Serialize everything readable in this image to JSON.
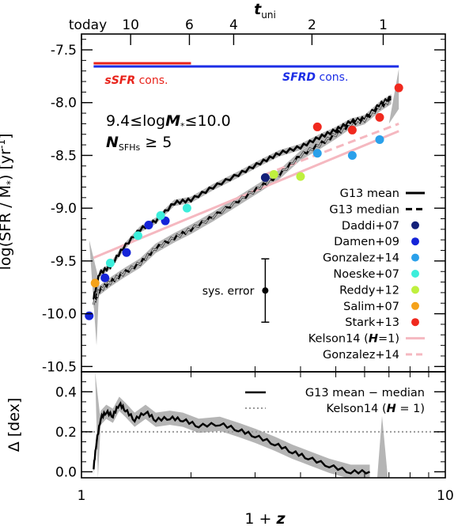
{
  "chart_data": [
    {
      "panel": "top",
      "type": "line",
      "top_axis": {
        "label": "t",
        "label_sub": "uni",
        "ticks": [
          {
            "label": "today",
            "z1": 1.0
          },
          {
            "label": "10",
            "z1": 1.365
          },
          {
            "label": "6",
            "z1": 1.98
          },
          {
            "label": "4",
            "z1": 2.62
          },
          {
            "label": "2",
            "z1": 4.3
          },
          {
            "label": "1",
            "z1": 6.75
          }
        ]
      },
      "xlabel": "1 + z",
      "xscale": "log",
      "xlim": [
        1,
        10
      ],
      "ylabel": "log(SFR / M",
      "ylabel_tail": ") [yr",
      "ylabel_exp": "-1",
      "ylabel_end": "]",
      "ylim": [
        -10.55,
        -7.35
      ],
      "yticks": [
        "-7.5",
        "-8.0",
        "-8.5",
        "-9.0",
        "-9.5",
        "-10.0",
        "-10.5"
      ],
      "ytick_values": [
        -7.5,
        -8.0,
        -8.5,
        -9.0,
        -9.5,
        -10.0,
        -10.5
      ],
      "bars": [
        {
          "label": "sSFR cons.",
          "color": "#e8231b",
          "x": [
            1.08,
            2.0
          ]
        },
        {
          "label": "SFRD cons.",
          "color": "#1c2ee6",
          "x": [
            1.08,
            7.45
          ]
        }
      ],
      "annotation_lines": [
        {
          "text": "9.4≤log",
          "italic": "M",
          "sub": "*",
          "tail": "≤10.0"
        },
        {
          "italic": "N",
          "sub": "SFHs",
          "tail": " ≥ 5"
        }
      ],
      "sys_error": {
        "label": "sys. error",
        "x": 3.2,
        "y": -9.78,
        "err": 0.3
      },
      "series": [
        {
          "name": "G13 mean",
          "style": "solid",
          "color": "#000000",
          "x": [
            1.08,
            1.12,
            1.2,
            1.3,
            1.45,
            1.6,
            1.8,
            2.0,
            2.3,
            2.7,
            3.1,
            3.5,
            4.0,
            4.5,
            5.0,
            5.5,
            6.0,
            6.6,
            7.1
          ],
          "y": [
            -9.85,
            -9.62,
            -9.55,
            -9.38,
            -9.2,
            -9.12,
            -8.95,
            -8.92,
            -8.8,
            -8.68,
            -8.57,
            -8.48,
            -8.42,
            -8.33,
            -8.26,
            -8.18,
            -8.15,
            -8.02,
            -7.95
          ]
        },
        {
          "name": "G13 median",
          "style": "dashed",
          "color": "#000000",
          "x": [
            1.08,
            1.12,
            1.2,
            1.3,
            1.45,
            1.6,
            1.8,
            2.0,
            2.3,
            2.7,
            3.1,
            3.5,
            4.0,
            4.5,
            5.0,
            5.5,
            6.0,
            6.6,
            7.1
          ],
          "y": [
            -9.9,
            -9.78,
            -9.7,
            -9.62,
            -9.52,
            -9.38,
            -9.28,
            -9.2,
            -9.08,
            -8.93,
            -8.8,
            -8.68,
            -8.5,
            -8.4,
            -8.3,
            -8.2,
            -8.16,
            -8.04,
            -7.97
          ]
        },
        {
          "name": "Kelson14 (H=1)",
          "style": "solid",
          "color": "#f5b8c0",
          "x": [
            1.08,
            7.45
          ],
          "y": [
            -9.47,
            -8.27
          ]
        },
        {
          "name": "Gonzalez+14",
          "style": "dashed",
          "color": "#f5b8c0",
          "x": [
            3.2,
            7.45
          ],
          "y": [
            -8.68,
            -8.2
          ]
        }
      ],
      "points": [
        {
          "name": "Daddi+07",
          "color": "#14217a",
          "pts": [
            [
              3.2,
              -8.71
            ]
          ]
        },
        {
          "name": "Damen+09",
          "color": "#1524d8",
          "pts": [
            [
              1.05,
              -10.02
            ],
            [
              1.16,
              -9.66
            ],
            [
              1.33,
              -9.42
            ],
            [
              1.53,
              -9.16
            ],
            [
              1.7,
              -9.12
            ]
          ]
        },
        {
          "name": "Gonzalez+14",
          "color": "#2aa0ea",
          "pts": [
            [
              4.45,
              -8.48
            ],
            [
              5.55,
              -8.5
            ],
            [
              6.6,
              -8.35
            ]
          ]
        },
        {
          "name": "Noeske+07",
          "color": "#3ceedb",
          "pts": [
            [
              1.2,
              -9.52
            ],
            [
              1.43,
              -9.26
            ],
            [
              1.65,
              -9.07
            ],
            [
              1.95,
              -9.0
            ]
          ]
        },
        {
          "name": "Reddy+12",
          "color": "#bff03e",
          "pts": [
            [
              3.38,
              -8.68
            ],
            [
              4.0,
              -8.7
            ]
          ]
        },
        {
          "name": "Salim+07",
          "color": "#f5a21a",
          "pts": [
            [
              1.09,
              -9.71
            ]
          ]
        },
        {
          "name": "Stark+13",
          "color": "#f0291e",
          "pts": [
            [
              4.45,
              -8.23
            ],
            [
              5.55,
              -8.26
            ],
            [
              6.6,
              -8.14
            ],
            [
              7.45,
              -7.86
            ]
          ]
        }
      ],
      "legend": {
        "placement": "right",
        "entries": [
          {
            "label": "G13 mean",
            "kind": "line",
            "style": "solid",
            "color": "#000000"
          },
          {
            "label": "G13 median",
            "kind": "line",
            "style": "dashed",
            "color": "#000000"
          },
          {
            "label": "Daddi+07",
            "kind": "dot",
            "color": "#14217a"
          },
          {
            "label": "Damen+09",
            "kind": "dot",
            "color": "#1524d8"
          },
          {
            "label": "Gonzalez+14",
            "kind": "dot",
            "color": "#2aa0ea"
          },
          {
            "label": "Noeske+07",
            "kind": "dot",
            "color": "#3ceedb"
          },
          {
            "label": "Reddy+12",
            "kind": "dot",
            "color": "#bff03e"
          },
          {
            "label": "Salim+07",
            "kind": "dot",
            "color": "#f5a21a"
          },
          {
            "label": "Stark+13",
            "kind": "dot",
            "color": "#f0291e"
          },
          {
            "label": "Kelson14 (",
            "label_tail": "=1)",
            "italic": "H",
            "kind": "line",
            "style": "solid",
            "color": "#f5b8c0"
          },
          {
            "label": "Gonzalez+14",
            "kind": "line",
            "style": "dashed",
            "color": "#f5b8c0"
          }
        ]
      }
    },
    {
      "panel": "bottom",
      "type": "line",
      "xlabel": "1 + z",
      "xscale": "log",
      "xlim": [
        1,
        10
      ],
      "xticks": [
        "1",
        "10"
      ],
      "xtick_values": [
        1,
        10
      ],
      "ylabel": "Δ [dex]",
      "ylim": [
        -0.03,
        0.5
      ],
      "yticks": [
        "0.0",
        "0.2",
        "0.4"
      ],
      "ytick_values": [
        0.0,
        0.2,
        0.4
      ],
      "series": [
        {
          "name": "G13 mean − median",
          "style": "solid",
          "color": "#000000",
          "x": [
            1.08,
            1.1,
            1.13,
            1.17,
            1.22,
            1.27,
            1.32,
            1.4,
            1.5,
            1.6,
            1.75,
            1.9,
            2.1,
            2.4,
            2.7,
            3.0,
            3.4,
            3.8,
            4.2,
            4.8,
            5.5,
            6.2
          ],
          "y": [
            0.02,
            0.15,
            0.27,
            0.3,
            0.28,
            0.34,
            0.31,
            0.26,
            0.3,
            0.26,
            0.27,
            0.26,
            0.23,
            0.24,
            0.21,
            0.18,
            0.14,
            0.1,
            0.07,
            0.03,
            0.0,
            0.0
          ]
        },
        {
          "name": "Kelson14 (H = 1)",
          "style": "dotted",
          "color": "#999999",
          "x": [
            1.0,
            10.0
          ],
          "y": [
            0.2,
            0.2
          ]
        }
      ],
      "legend": {
        "placement": "top-right",
        "entries": [
          {
            "label": "G13 mean − median",
            "style": "solid",
            "color": "#000000"
          },
          {
            "label": "Kelson14 (",
            "italic": "H",
            "label_tail": " = 1)",
            "style": "dotted",
            "color": "#999999"
          }
        ]
      }
    }
  ]
}
